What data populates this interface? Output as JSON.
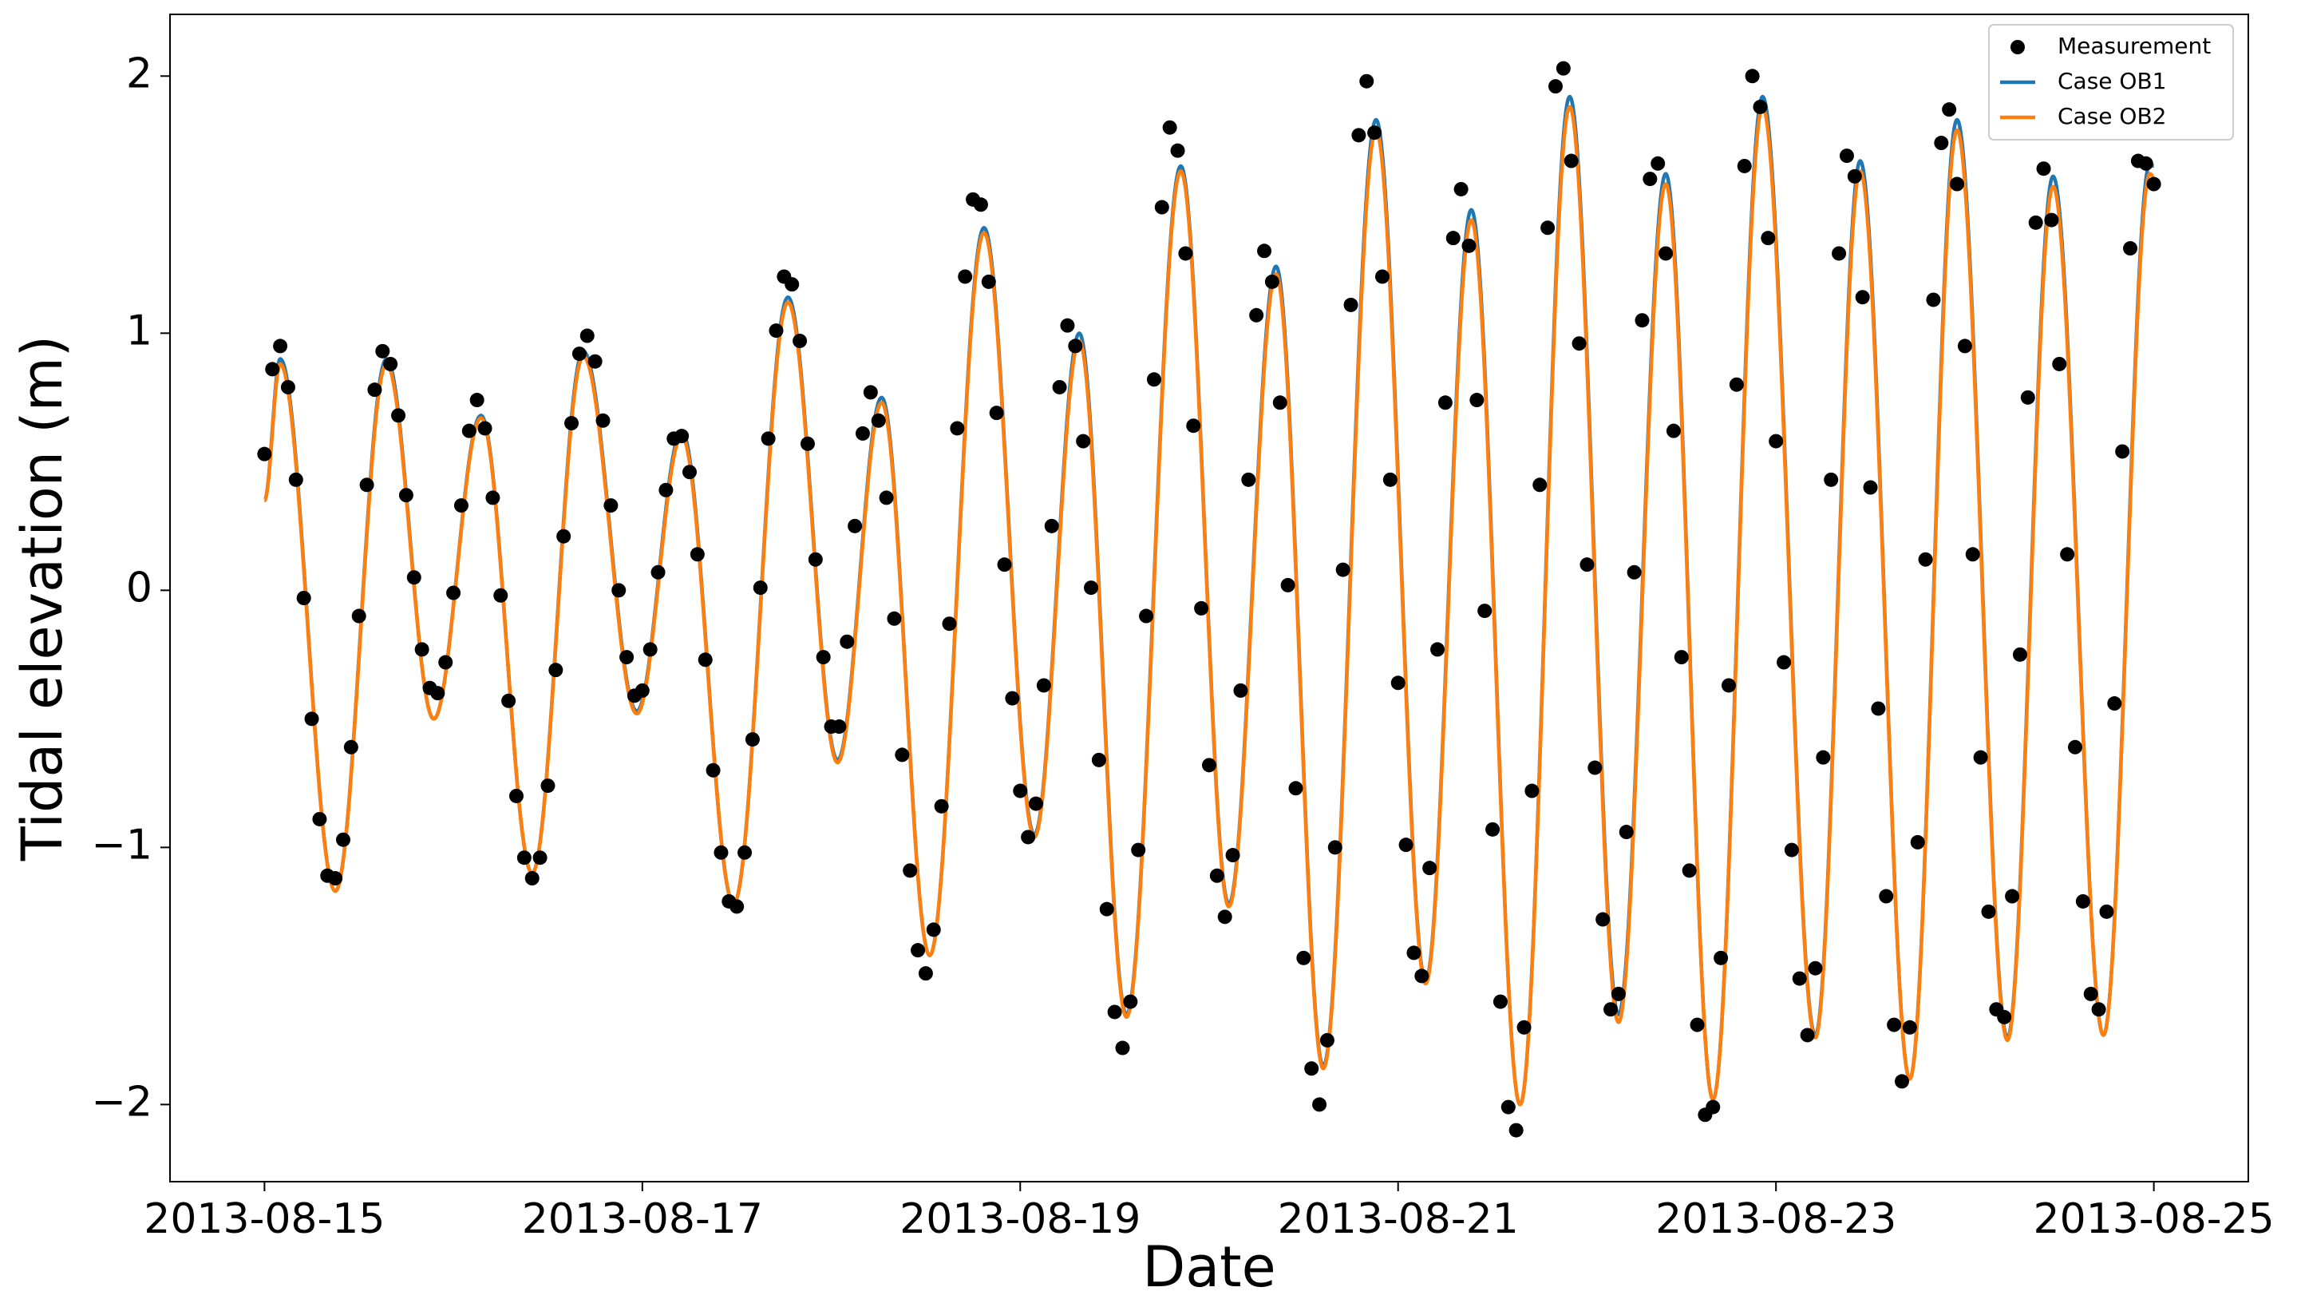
{
  "chart_data": {
    "type": "line",
    "xlabel": "Date",
    "ylabel": "Tidal elevation (m)",
    "xlim": [
      -12,
      252
    ],
    "ylim": [
      -2.3,
      2.24
    ],
    "xticks": [
      {
        "value": 0,
        "label": "2013-08-15"
      },
      {
        "value": 48,
        "label": "2013-08-17"
      },
      {
        "value": 96,
        "label": "2013-08-19"
      },
      {
        "value": 144,
        "label": "2013-08-21"
      },
      {
        "value": 192,
        "label": "2013-08-23"
      },
      {
        "value": 240,
        "label": "2013-08-25"
      }
    ],
    "yticks": [
      {
        "value": -2,
        "label": "−2"
      },
      {
        "value": -1,
        "label": "−1"
      },
      0,
      1,
      2
    ],
    "legend": "upper right",
    "series": [
      {
        "name": "Measurement",
        "type": "scatter",
        "color": "#000000",
        "x": [
          0,
          1,
          2,
          3,
          4,
          5,
          6,
          7,
          8,
          9,
          10,
          11,
          12,
          13,
          14,
          15,
          16,
          17,
          18,
          19,
          20,
          21,
          22,
          23,
          24,
          25,
          26,
          27,
          28,
          29,
          30,
          31,
          32,
          33,
          34,
          35,
          36,
          37,
          38,
          39,
          40,
          41,
          42,
          43,
          44,
          45,
          46,
          47,
          48,
          49,
          50,
          51,
          52,
          53,
          54,
          55,
          56,
          57,
          58,
          59,
          60,
          61,
          62,
          63,
          64,
          65,
          66,
          67,
          68,
          69,
          70,
          71,
          72,
          73,
          74,
          75,
          76,
          77,
          78,
          79,
          80,
          81,
          82,
          83,
          84,
          85,
          86,
          87,
          88,
          89,
          90,
          91,
          92,
          93,
          94,
          95,
          96,
          97,
          98,
          99,
          100,
          101,
          102,
          103,
          104,
          105,
          106,
          107,
          108,
          109,
          110,
          111,
          112,
          113,
          114,
          115,
          116,
          117,
          118,
          119,
          120,
          121,
          122,
          123,
          124,
          125,
          126,
          127,
          128,
          129,
          130,
          131,
          132,
          133,
          134,
          135,
          136,
          137,
          138,
          139,
          140,
          141,
          142,
          143,
          144,
          145,
          146,
          147,
          148,
          149,
          150,
          151,
          152,
          153,
          154,
          155,
          156,
          157,
          158,
          159,
          160,
          161,
          162,
          163,
          164,
          165,
          166,
          167,
          168,
          169,
          170,
          171,
          172,
          173,
          174,
          175,
          176,
          177,
          178,
          179,
          180,
          181,
          182,
          183,
          184,
          185,
          186,
          187,
          188,
          189,
          190,
          191,
          192,
          193,
          194,
          195,
          196,
          197,
          198,
          199,
          200,
          201,
          202,
          203,
          204,
          205,
          206,
          207,
          208,
          209,
          210,
          211,
          212,
          213,
          214,
          215,
          216,
          217,
          218,
          219,
          220,
          221,
          222,
          223,
          224,
          225,
          226,
          227,
          228,
          229,
          230,
          231,
          232,
          233,
          234,
          235,
          236,
          237,
          238,
          239,
          240
        ],
        "values": [
          0.53,
          0.86,
          0.95,
          0.79,
          0.43,
          -0.03,
          -0.5,
          -0.89,
          -1.11,
          -1.12,
          -0.97,
          -0.61,
          -0.1,
          0.41,
          0.78,
          0.93,
          0.88,
          0.68,
          0.37,
          0.05,
          -0.23,
          -0.38,
          -0.4,
          -0.28,
          -0.01,
          0.33,
          0.62,
          0.74,
          0.63,
          0.36,
          -0.02,
          -0.43,
          -0.8,
          -1.04,
          -1.12,
          -1.04,
          -0.76,
          -0.31,
          0.21,
          0.65,
          0.92,
          0.99,
          0.89,
          0.66,
          0.33,
          0.0,
          -0.26,
          -0.41,
          -0.39,
          -0.23,
          0.07,
          0.39,
          0.59,
          0.6,
          0.46,
          0.14,
          -0.27,
          -0.7,
          -1.02,
          -1.21,
          -1.23,
          -1.02,
          -0.58,
          0.01,
          0.59,
          1.01,
          1.22,
          1.19,
          0.97,
          0.57,
          0.12,
          -0.26,
          -0.53,
          -0.53,
          -0.2,
          0.25,
          0.61,
          0.77,
          0.66,
          0.36,
          -0.11,
          -0.64,
          -1.09,
          -1.4,
          -1.49,
          -1.32,
          -0.84,
          -0.13,
          0.63,
          1.22,
          1.52,
          1.5,
          1.2,
          0.69,
          0.1,
          -0.42,
          -0.78,
          -0.96,
          -0.83,
          -0.37,
          0.25,
          0.79,
          1.03,
          0.95,
          0.58,
          0.01,
          -0.66,
          -1.24,
          -1.64,
          -1.78,
          -1.6,
          -1.01,
          -0.1,
          0.82,
          1.49,
          1.8,
          1.71,
          1.31,
          0.64,
          -0.07,
          -0.68,
          -1.11,
          -1.27,
          -1.03,
          -0.39,
          0.43,
          1.07,
          1.32,
          1.2,
          0.73,
          0.02,
          -0.77,
          -1.43,
          -1.86,
          -2.0,
          -1.75,
          -1.0,
          0.08,
          1.11,
          1.77,
          1.98,
          1.78,
          1.22,
          0.43,
          -0.36,
          -0.99,
          -1.41,
          -1.5,
          -1.08,
          -0.23,
          0.73,
          1.37,
          1.56,
          1.34,
          0.74,
          -0.08,
          -0.93,
          -1.6,
          -2.01,
          -2.1,
          -1.7,
          -0.78,
          0.41,
          1.41,
          1.96,
          2.03,
          1.67,
          0.96,
          0.1,
          -0.69,
          -1.28,
          -1.63,
          -1.57,
          -0.94,
          0.07,
          1.05,
          1.6,
          1.66,
          1.31,
          0.62,
          -0.26,
          -1.09,
          -1.69,
          -2.04,
          -2.01,
          -1.43,
          -0.37,
          0.8,
          1.65,
          2.0,
          1.88,
          1.37,
          0.58,
          -0.28,
          -1.01,
          -1.51,
          -1.73,
          -1.47,
          -0.65,
          0.43,
          1.31,
          1.69,
          1.61,
          1.14,
          0.4,
          -0.46,
          -1.19,
          -1.69,
          -1.91,
          -1.7,
          -0.98,
          0.12,
          1.13,
          1.74,
          1.87,
          1.58,
          0.95,
          0.14,
          -0.65,
          -1.25,
          -1.63,
          -1.66,
          -1.19,
          -0.25,
          0.75,
          1.43,
          1.64,
          1.44,
          0.88,
          0.14,
          -0.61,
          -1.21,
          -1.57,
          -1.63,
          -1.25,
          -0.44,
          0.54,
          1.33,
          1.67,
          1.66,
          1.58
        ]
      },
      {
        "name": "Case OB1",
        "type": "line",
        "color": "#1f77b4",
        "x": [
          0,
          2,
          9,
          15.5,
          21.5,
          27.5,
          34,
          40.5,
          47.3,
          53,
          59.6,
          66.5,
          72.8,
          78.4,
          84.5,
          91.4,
          97.8,
          103.5,
          109.5,
          116.4,
          122.5,
          128.5,
          134.5,
          141.2,
          147.5,
          153.3,
          159.5,
          165.8,
          172,
          178,
          184,
          190.3,
          197,
          202.7,
          209,
          215,
          221.4,
          227.2,
          233.6,
          239.5,
          240
        ],
        "values": [
          0.35,
          0.9,
          -1.17,
          0.9,
          -0.5,
          0.68,
          -1.1,
          0.93,
          -0.47,
          0.62,
          -1.22,
          1.14,
          -0.66,
          0.75,
          -1.42,
          1.41,
          -0.95,
          1.0,
          -1.65,
          1.65,
          -1.22,
          1.26,
          -1.85,
          1.83,
          -1.52,
          1.48,
          -2.0,
          1.92,
          -1.65,
          1.62,
          -1.98,
          1.92,
          -1.73,
          1.67,
          -1.9,
          1.83,
          -1.74,
          1.61,
          -1.73,
          1.66,
          1.65
        ]
      },
      {
        "name": "Case OB2",
        "type": "line",
        "color": "#ff7f0e",
        "x": [
          0,
          2,
          9,
          15.5,
          21.5,
          27.5,
          34,
          40.5,
          47.3,
          53,
          59.6,
          66.5,
          72.8,
          78.4,
          84.5,
          91.4,
          97.8,
          103.5,
          109.5,
          116.4,
          122.5,
          128.5,
          134.5,
          141.2,
          147.5,
          153.3,
          159.5,
          165.8,
          172,
          178,
          184,
          190.3,
          197,
          202.7,
          209,
          215,
          221.4,
          227.2,
          233.6,
          239.5,
          240
        ],
        "values": [
          0.35,
          0.88,
          -1.17,
          0.88,
          -0.5,
          0.67,
          -1.1,
          0.91,
          -0.48,
          0.6,
          -1.22,
          1.12,
          -0.67,
          0.73,
          -1.42,
          1.39,
          -0.96,
          0.97,
          -1.66,
          1.63,
          -1.23,
          1.23,
          -1.86,
          1.79,
          -1.53,
          1.44,
          -2.0,
          1.88,
          -1.68,
          1.58,
          -1.98,
          1.88,
          -1.74,
          1.63,
          -1.9,
          1.79,
          -1.75,
          1.57,
          -1.73,
          1.62,
          1.61
        ]
      }
    ]
  }
}
